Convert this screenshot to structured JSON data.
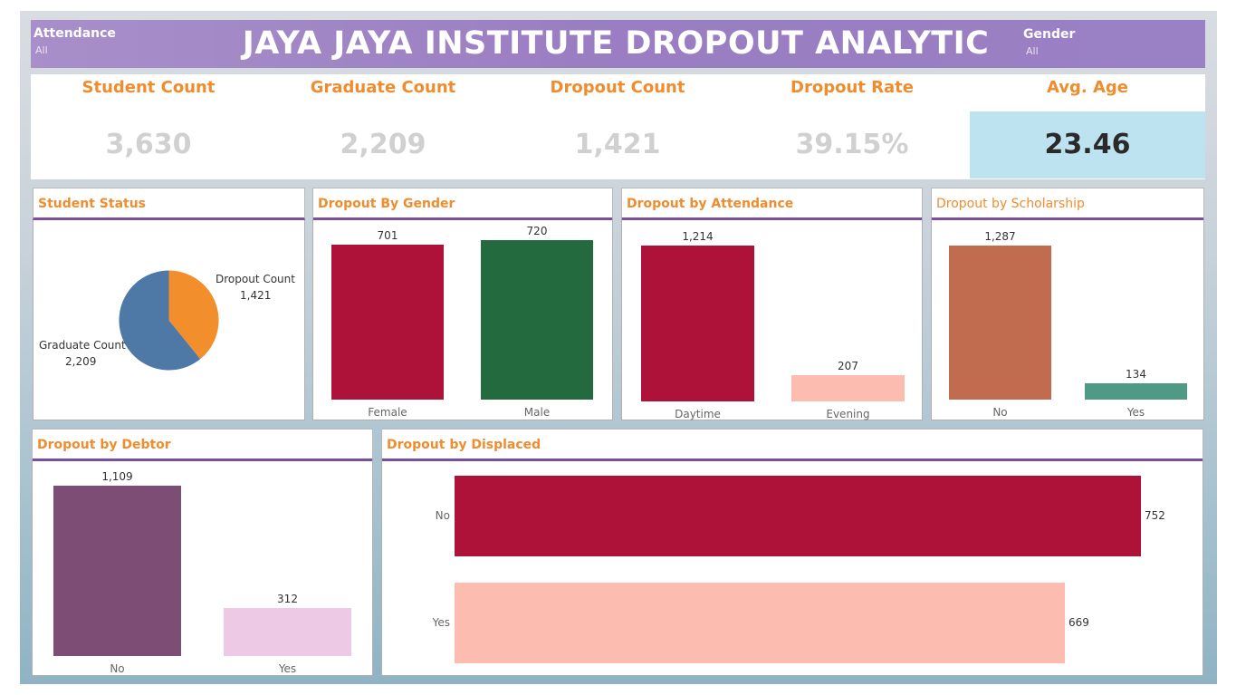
{
  "header": {
    "title": "JAYA JAYA INSTITUTE DROPOUT ANALYTIC",
    "filters": [
      {
        "label": "Attendance",
        "value": "All"
      },
      {
        "label": "Gender",
        "value": "All"
      }
    ]
  },
  "kpis": [
    {
      "label": "Student Count",
      "value": "3,630"
    },
    {
      "label": "Graduate Count",
      "value": "2,209"
    },
    {
      "label": "Dropout Count",
      "value": "1,421"
    },
    {
      "label": "Dropout Rate",
      "value": "39.15%"
    },
    {
      "label": "Avg. Age",
      "value": "23.46"
    }
  ],
  "panels": {
    "status": {
      "title": "Student Status"
    },
    "gender": {
      "title": "Dropout By Gender"
    },
    "attendance": {
      "title": "Dropout by Attendance"
    },
    "scholarship": {
      "title": "Dropout by Scholarship"
    },
    "debtor": {
      "title": "Dropout by Debtor"
    },
    "displaced": {
      "title": "Dropout by Displaced"
    }
  },
  "colors": {
    "accent": "#ef8c2e",
    "header": "#9a7dc2",
    "crimson": "#ae1238",
    "green": "#236b3f",
    "salmon": "#fcbcb0",
    "terracotta": "#c16b4f",
    "teal": "#4f9a84",
    "plum": "#7e4d76",
    "pink": "#eec9e6",
    "pie_orange": "#f28e2b",
    "pie_blue": "#4e79a7"
  },
  "chart_data": [
    {
      "type": "pie",
      "title": "Student Status",
      "series": [
        {
          "name": "Dropout Count",
          "value": 1421,
          "label": "1,421"
        },
        {
          "name": "Graduate Count",
          "value": 2209,
          "label": "2,209"
        }
      ]
    },
    {
      "type": "bar",
      "title": "Dropout By Gender",
      "categories": [
        "Female",
        "Male"
      ],
      "values": [
        701,
        720
      ],
      "labels": [
        "701",
        "720"
      ],
      "colors": [
        "#ae1238",
        "#236b3f"
      ]
    },
    {
      "type": "bar",
      "title": "Dropout by Attendance",
      "categories": [
        "Daytime",
        "Evening"
      ],
      "values": [
        1214,
        207
      ],
      "labels": [
        "1,214",
        "207"
      ],
      "colors": [
        "#ae1238",
        "#fcbcb0"
      ]
    },
    {
      "type": "bar",
      "title": "Dropout by Scholarship",
      "categories": [
        "No",
        "Yes"
      ],
      "values": [
        1287,
        134
      ],
      "labels": [
        "1,287",
        "134"
      ],
      "colors": [
        "#c16b4f",
        "#4f9a84"
      ]
    },
    {
      "type": "bar",
      "title": "Dropout by Debtor",
      "categories": [
        "No",
        "Yes"
      ],
      "values": [
        1109,
        312
      ],
      "labels": [
        "1,109",
        "312"
      ],
      "colors": [
        "#7e4d76",
        "#eec9e6"
      ]
    },
    {
      "type": "bar",
      "orientation": "horizontal",
      "title": "Dropout by Displaced",
      "categories": [
        "No",
        "Yes"
      ],
      "values": [
        752,
        669
      ],
      "labels": [
        "752",
        "669"
      ],
      "colors": [
        "#ae1238",
        "#fcbcb0"
      ]
    }
  ]
}
